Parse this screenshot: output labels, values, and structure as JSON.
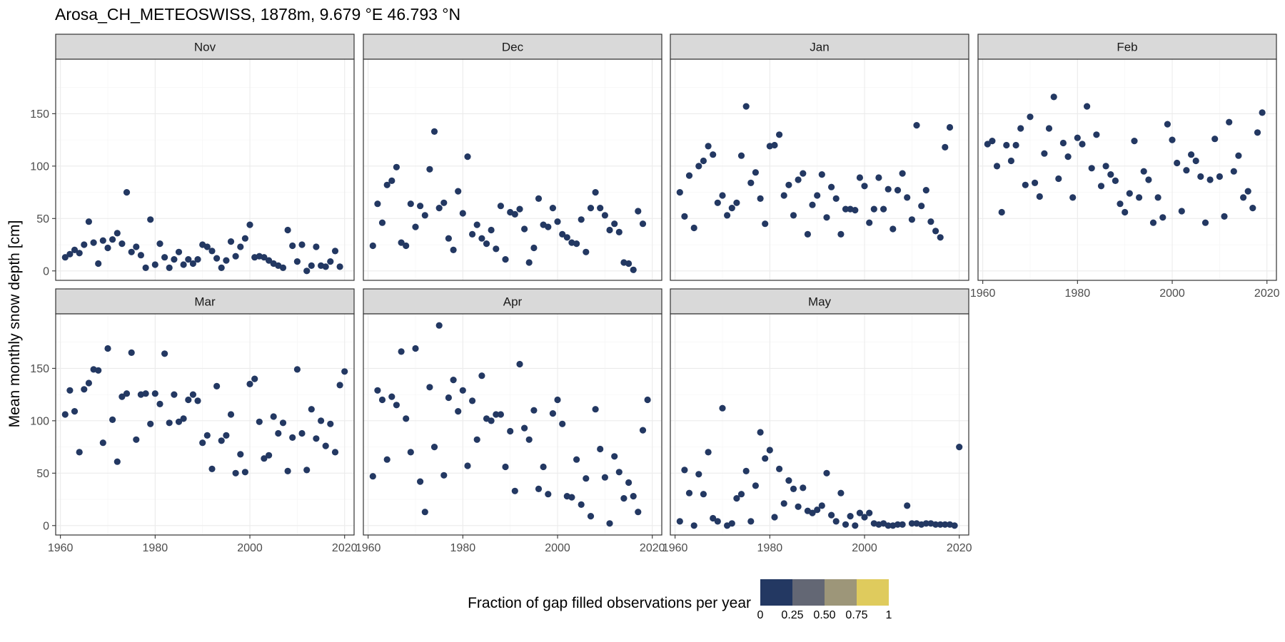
{
  "chart_data": {
    "type": "scatter",
    "title": "Arosa_CH_METEOSWISS, 1878m, 9.679 °E 46.793 °N",
    "ylabel": "Mean monthly snow depth [cm]",
    "xlabel": "",
    "xlim": [
      1959,
      2022
    ],
    "ylim": [
      -9,
      202
    ],
    "x_ticks": [
      1960,
      1980,
      2000,
      2020
    ],
    "y_ticks": [
      0,
      50,
      100,
      150
    ],
    "grid": true,
    "point_color": "#233862",
    "legend": {
      "title": "Fraction of gap filled observations per year",
      "placement": "bottom",
      "tick_labels": [
        "0",
        "0.25",
        "0.50",
        "0.75",
        "1"
      ],
      "colors": [
        "#233862",
        "#636774",
        "#9d9679",
        "#dfcb5d"
      ]
    },
    "panels": [
      {
        "label": "Nov",
        "values": [
          13,
          16,
          20,
          17,
          25,
          47,
          27,
          7,
          29,
          22,
          30,
          36,
          26,
          75,
          18,
          23,
          15,
          3,
          49,
          6,
          26,
          13,
          3,
          11,
          18,
          6,
          11,
          7,
          11,
          25,
          23,
          19,
          12,
          3,
          10,
          28,
          14,
          23,
          31,
          44,
          13,
          14,
          13,
          10,
          7,
          5,
          3,
          39,
          24,
          9,
          25,
          0,
          5,
          23,
          5,
          4,
          9,
          19,
          4
        ]
      },
      {
        "label": "Dec",
        "values": [
          24,
          64,
          46,
          82,
          86,
          99,
          27,
          24,
          64,
          42,
          62,
          53,
          97,
          133,
          60,
          65,
          31,
          20,
          76,
          55,
          109,
          35,
          44,
          31,
          26,
          39,
          21,
          62,
          11,
          56,
          54,
          59,
          40,
          8,
          22,
          69,
          44,
          42,
          60,
          47,
          35,
          32,
          27,
          26,
          49,
          18,
          60,
          75,
          60,
          53,
          39,
          45,
          37,
          8,
          7,
          1,
          57,
          45
        ]
      },
      {
        "label": "Jan",
        "values": [
          75,
          52,
          91,
          41,
          100,
          105,
          119,
          111,
          65,
          72,
          53,
          60,
          65,
          110,
          157,
          84,
          94,
          69,
          45,
          119,
          120,
          130,
          72,
          82,
          53,
          87,
          93,
          35,
          63,
          72,
          92,
          51,
          80,
          69,
          35,
          59,
          59,
          58,
          89,
          81,
          46,
          59,
          89,
          59,
          78,
          40,
          77,
          93,
          70,
          49,
          139,
          62,
          77,
          47,
          38,
          32,
          118,
          137
        ]
      },
      {
        "label": "Feb",
        "values": [
          121,
          124,
          100,
          56,
          120,
          105,
          120,
          136,
          82,
          147,
          84,
          71,
          112,
          136,
          166,
          88,
          122,
          109,
          70,
          127,
          121,
          157,
          98,
          130,
          81,
          100,
          92,
          86,
          64,
          56,
          74,
          124,
          70,
          95,
          87,
          46,
          70,
          51,
          140,
          125,
          103,
          57,
          96,
          111,
          105,
          90,
          46,
          87,
          126,
          90,
          52,
          142,
          95,
          110,
          70,
          76,
          60,
          132,
          151
        ]
      },
      {
        "label": "Mar",
        "values": [
          106,
          129,
          109,
          70,
          130,
          136,
          149,
          148,
          79,
          169,
          101,
          61,
          123,
          126,
          165,
          82,
          125,
          126,
          97,
          126,
          116,
          164,
          98,
          125,
          99,
          102,
          120,
          125,
          119,
          79,
          86,
          54,
          133,
          81,
          86,
          106,
          50,
          68,
          51,
          135,
          140,
          99,
          64,
          67,
          104,
          88,
          98,
          52,
          84,
          149,
          88,
          53,
          111,
          83,
          100,
          76,
          97,
          70,
          134,
          147
        ]
      },
      {
        "label": "Apr",
        "values": [
          47,
          129,
          120,
          63,
          123,
          115,
          166,
          102,
          70,
          169,
          42,
          13,
          132,
          75,
          191,
          48,
          122,
          139,
          109,
          129,
          57,
          119,
          82,
          143,
          102,
          100,
          106,
          106,
          56,
          90,
          33,
          154,
          93,
          82,
          110,
          35,
          56,
          30,
          107,
          120,
          97,
          28,
          27,
          63,
          20,
          45,
          9,
          111,
          73,
          46,
          2,
          66,
          51,
          26,
          41,
          28,
          13,
          91,
          120
        ]
      },
      {
        "label": "May",
        "values": [
          4,
          53,
          31,
          0,
          49,
          30,
          70,
          7,
          4,
          112,
          0,
          2,
          26,
          30,
          52,
          4,
          38,
          89,
          64,
          72,
          8,
          54,
          21,
          43,
          35,
          18,
          36,
          14,
          12,
          15,
          19,
          50,
          10,
          4,
          31,
          1,
          9,
          0,
          12,
          8,
          12,
          2,
          1,
          2,
          0,
          0,
          1,
          1,
          19,
          2,
          2,
          1,
          2,
          2,
          1,
          1,
          1,
          1,
          0,
          75
        ]
      }
    ]
  }
}
